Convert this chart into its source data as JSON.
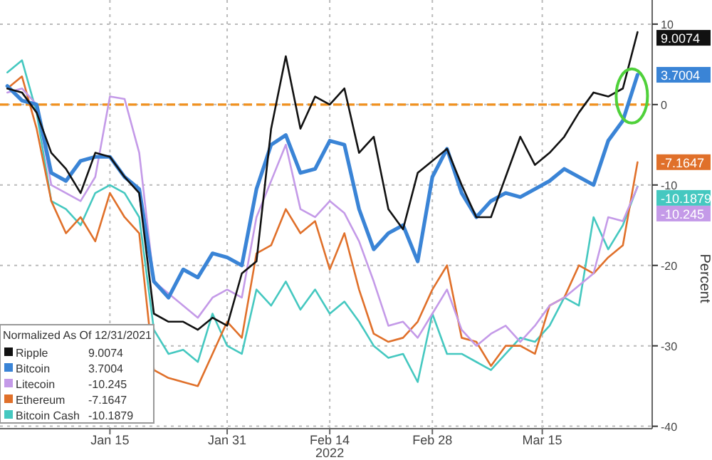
{
  "chart_data": {
    "type": "line",
    "ylabel": "Percent",
    "legend_title": "Normalized As Of 12/31/2021",
    "legend": "bottom left",
    "grid": true,
    "line_style": "solid",
    "x": [
      "2022-01-01",
      "2022-01-03",
      "2022-01-05",
      "2022-01-07",
      "2022-01-09",
      "2022-01-11",
      "2022-01-13",
      "2022-01-15",
      "2022-01-17",
      "2022-01-19",
      "2022-01-21",
      "2022-01-23",
      "2022-01-25",
      "2022-01-27",
      "2022-01-29",
      "2022-01-31",
      "2022-02-02",
      "2022-02-04",
      "2022-02-06",
      "2022-02-08",
      "2022-02-10",
      "2022-02-12",
      "2022-02-14",
      "2022-02-16",
      "2022-02-18",
      "2022-02-20",
      "2022-02-22",
      "2022-02-24",
      "2022-02-26",
      "2022-02-28",
      "2022-03-02",
      "2022-03-04",
      "2022-03-06",
      "2022-03-08",
      "2022-03-10",
      "2022-03-12",
      "2022-03-14",
      "2022-03-16",
      "2022-03-18",
      "2022-03-20",
      "2022-03-22",
      "2022-03-24",
      "2022-03-26",
      "2022-03-28"
    ],
    "xlim": [
      "2021-12-31",
      "2022-03-30"
    ],
    "xticks": [
      {
        "value": "2022-01-15",
        "label": "Jan 15"
      },
      {
        "value": "2022-01-31",
        "label": "Jan 31"
      },
      {
        "value": "2022-02-14",
        "label": "Feb 14\n2022"
      },
      {
        "value": "2022-02-28",
        "label": "Feb 28"
      },
      {
        "value": "2022-03-15",
        "label": "Mar 15"
      }
    ],
    "ylim": [
      -40.3,
      13
    ],
    "yticks": [
      10,
      0,
      -10,
      -20,
      -30,
      -40
    ],
    "ref_lines": [
      {
        "axis": "y",
        "value": 0,
        "color": "#f0901e",
        "line_style": "dashed"
      }
    ],
    "series": [
      {
        "name": "Ripple",
        "color": "#111111",
        "values": [
          2,
          1.5,
          -1,
          -6,
          -8,
          -11,
          -6,
          -6.5,
          -9,
          -11,
          -26,
          -27,
          -27,
          -28,
          -26.5,
          -27.5,
          -21,
          -19.5,
          -3,
          6,
          -3,
          1,
          0,
          2,
          -6,
          -4,
          -13,
          -15.5,
          -8.5,
          -7,
          -5.5,
          -10,
          -14,
          -14,
          -9,
          -4,
          -7.5,
          -6,
          -4,
          -1,
          1.5,
          1,
          2,
          9.0074
        ],
        "value_labels": [
          null,
          null,
          null,
          null,
          null,
          null,
          null,
          null,
          null,
          null,
          null,
          null,
          null,
          null,
          null,
          null,
          null,
          null,
          null,
          null,
          null,
          null,
          null,
          null,
          null,
          null,
          null,
          null,
          null,
          null,
          null,
          null,
          null,
          null,
          null,
          null,
          null,
          null,
          null,
          null,
          null,
          null,
          null,
          "9.0074"
        ]
      },
      {
        "name": "Bitcoin",
        "color": "#3a84d6",
        "values": [
          2.3,
          0.5,
          0,
          -8.5,
          -9.5,
          -7,
          -6.5,
          -6.5,
          -9,
          -10.5,
          -22,
          -24,
          -20.5,
          -21.5,
          -18.5,
          -19,
          -20,
          -10.5,
          -5,
          -3.8,
          -8.5,
          -8,
          -4.5,
          -5,
          -13,
          -18,
          -16,
          -15,
          -19.5,
          -9,
          -5.5,
          -11,
          -14,
          -12,
          -11,
          -11.5,
          -10.5,
          -9.5,
          -8,
          -9,
          -10,
          -4.5,
          -2,
          3.7004
        ],
        "value_labels": [
          null,
          null,
          null,
          null,
          null,
          null,
          null,
          null,
          null,
          null,
          null,
          null,
          null,
          null,
          null,
          null,
          null,
          null,
          null,
          null,
          null,
          null,
          null,
          null,
          null,
          null,
          null,
          null,
          null,
          null,
          null,
          null,
          null,
          null,
          null,
          null,
          null,
          null,
          null,
          null,
          null,
          null,
          null,
          "3.7004"
        ]
      },
      {
        "name": "Litecoin",
        "color": "#c49ae8",
        "values": [
          1.5,
          2,
          0,
          -10,
          -11,
          -12,
          -9,
          1,
          0.7,
          -6,
          -22,
          -23.5,
          -25,
          -26.5,
          -24,
          -23,
          -24,
          -14,
          -9.5,
          -5,
          -13,
          -14,
          -12,
          -13.5,
          -17,
          -22,
          -27.5,
          -27,
          -29,
          -26,
          -23,
          -28,
          -30,
          -28.5,
          -27.5,
          -29.5,
          -27.5,
          -25,
          -24,
          -22.5,
          -21,
          -14,
          -14.5,
          -10.245
        ],
        "value_labels": [
          null,
          null,
          null,
          null,
          null,
          null,
          null,
          null,
          null,
          null,
          null,
          null,
          null,
          null,
          null,
          null,
          null,
          null,
          null,
          null,
          null,
          null,
          null,
          null,
          null,
          null,
          null,
          null,
          null,
          null,
          null,
          null,
          null,
          null,
          null,
          null,
          null,
          null,
          null,
          null,
          null,
          null,
          null,
          "-10.245"
        ]
      },
      {
        "name": "Ethereum",
        "color": "#e0702a",
        "values": [
          2,
          3.5,
          -3,
          -12,
          -16,
          -14,
          -17,
          -11,
          -14,
          -16,
          -33,
          -34,
          -34.5,
          -35,
          -31,
          -27,
          -29,
          -18.5,
          -17.5,
          -13,
          -16,
          -14.5,
          -20.5,
          -16,
          -23,
          -28.5,
          -29.5,
          -29,
          -27,
          -23,
          -20,
          -29,
          -29.5,
          -32.5,
          -30,
          -30,
          -31,
          -25,
          -24,
          -20,
          -21,
          -19,
          -17.5,
          -7.1647
        ],
        "value_labels": [
          null,
          null,
          null,
          null,
          null,
          null,
          null,
          null,
          null,
          null,
          null,
          null,
          null,
          null,
          null,
          null,
          null,
          null,
          null,
          null,
          null,
          null,
          null,
          null,
          null,
          null,
          null,
          null,
          null,
          null,
          null,
          null,
          null,
          null,
          null,
          null,
          null,
          null,
          null,
          null,
          null,
          null,
          null,
          "-7.1647"
        ]
      },
      {
        "name": "Bitcoin Cash",
        "color": "#45c8c0",
        "values": [
          4,
          5.5,
          -1,
          -12,
          -13,
          -15,
          -11,
          -10,
          -11,
          -14,
          -28,
          -31,
          -30.5,
          -32,
          -26,
          -30,
          -31,
          -23,
          -25,
          -22,
          -25.5,
          -23,
          -26,
          -24.5,
          -27,
          -30,
          -31.5,
          -31,
          -34.5,
          -26,
          -31,
          -31,
          -32,
          -33,
          -31,
          -29,
          -29.5,
          -27.5,
          -24,
          -25,
          -14,
          -18,
          -15,
          -10.1879
        ],
        "value_labels": [
          null,
          null,
          null,
          null,
          null,
          null,
          null,
          null,
          null,
          null,
          null,
          null,
          null,
          null,
          null,
          null,
          null,
          null,
          null,
          null,
          null,
          null,
          null,
          null,
          null,
          null,
          null,
          null,
          null,
          null,
          null,
          null,
          null,
          null,
          null,
          null,
          null,
          null,
          null,
          null,
          null,
          null,
          null,
          "-10.1879"
        ]
      }
    ]
  }
}
